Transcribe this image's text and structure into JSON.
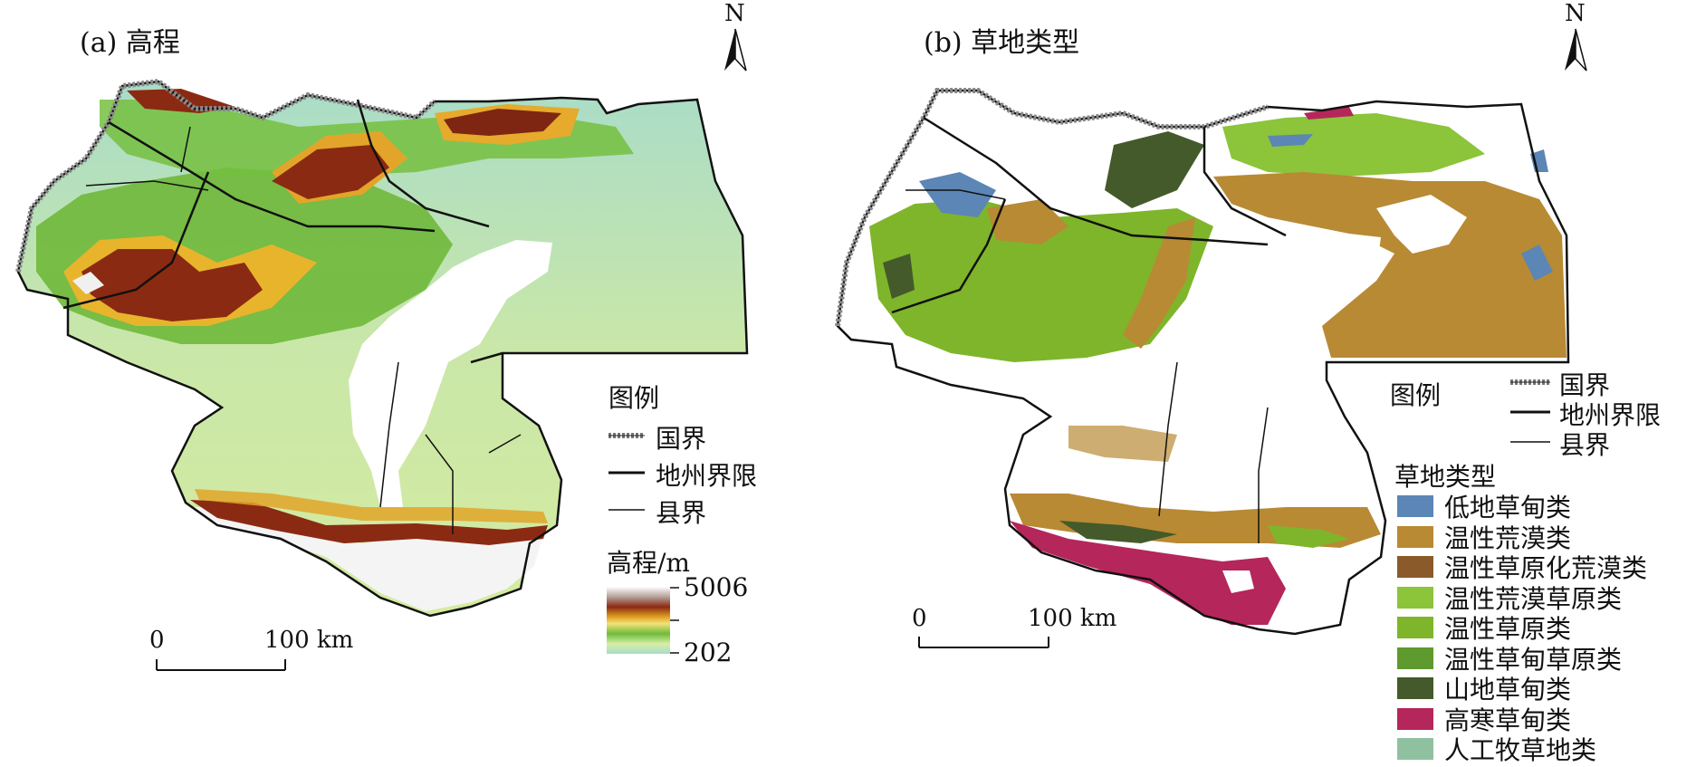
{
  "panel_a": {
    "title": "(a) 高程",
    "north": "N",
    "legend": {
      "title": "图例",
      "boundaries": [
        "国界",
        "地州界限",
        "县界"
      ],
      "elevation_title": "高程/m",
      "elevation_max": "5006",
      "elevation_min": "202"
    },
    "scale": {
      "start": "0",
      "end": "100 km"
    }
  },
  "panel_b": {
    "title": "(b) 草地类型",
    "north": "N",
    "legend": {
      "title": "图例",
      "boundaries": [
        "国界",
        "地州界限",
        "县界"
      ],
      "grass_title": "草地类型",
      "classes": [
        {
          "label": "低地草甸类",
          "color": "#5b86b5"
        },
        {
          "label": "温性荒漠类",
          "color": "#b88a34"
        },
        {
          "label": "温性草原化荒漠类",
          "color": "#8a5a2b"
        },
        {
          "label": "温性荒漠草原类",
          "color": "#8cc43a"
        },
        {
          "label": "温性草原类",
          "color": "#7fb52a"
        },
        {
          "label": "温性草甸草原类",
          "color": "#5e9a2e"
        },
        {
          "label": "山地草甸类",
          "color": "#445a2a"
        },
        {
          "label": "高寒草甸类",
          "color": "#b5265a"
        },
        {
          "label": "人工牧草地类",
          "color": "#8fc1a0"
        }
      ]
    },
    "scale": {
      "start": "0",
      "end": "100 km"
    }
  }
}
